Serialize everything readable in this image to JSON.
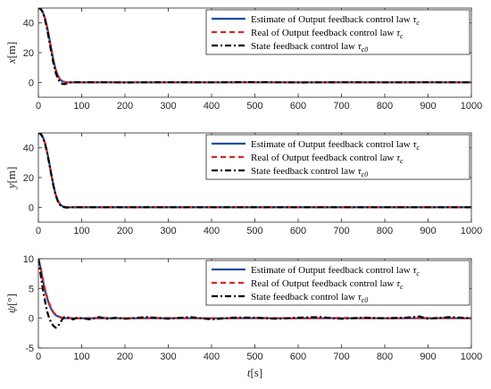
{
  "chart_data": [
    {
      "type": "line",
      "ylabel": {
        "var": "x",
        "unit": "[m]"
      },
      "xlim": [
        0,
        1000
      ],
      "ylim": [
        -10,
        50
      ],
      "xticks": [
        0,
        100,
        200,
        300,
        400,
        500,
        600,
        700,
        800,
        900,
        1000
      ],
      "yticks": [
        0,
        20,
        40
      ],
      "grid": false,
      "legend_position": "top-right",
      "series": [
        {
          "name": "Estimate of Output feedback control law",
          "sub": "c",
          "color": "#1f4e9c",
          "style": "solid",
          "x": [
            0,
            5,
            10,
            15,
            20,
            25,
            30,
            35,
            40,
            45,
            50,
            55,
            60,
            65,
            70,
            80,
            90,
            100,
            150,
            200,
            300,
            400,
            500,
            600,
            700,
            800,
            900,
            1000
          ],
          "y": [
            50,
            49.6,
            47.5,
            43.5,
            37.5,
            30,
            22,
            14.5,
            8.5,
            4.5,
            2,
            0.8,
            0.3,
            0.1,
            0,
            0,
            0,
            0,
            0,
            0,
            0,
            0,
            0,
            0,
            0,
            0,
            0,
            0
          ]
        },
        {
          "name": "Real of Output feedback control law",
          "sub": "c",
          "color": "#d62728",
          "style": "dashed",
          "x": [
            0,
            5,
            10,
            15,
            20,
            25,
            30,
            35,
            40,
            45,
            50,
            55,
            60,
            65,
            70,
            80,
            90,
            100,
            150,
            200,
            300,
            400,
            500,
            600,
            700,
            800,
            900,
            1000
          ],
          "y": [
            50,
            49.6,
            47.5,
            43.5,
            37.5,
            30,
            22,
            14.5,
            8.5,
            4.5,
            2,
            0.8,
            0.3,
            0.1,
            0,
            0,
            0,
            0,
            0,
            0,
            0,
            0,
            0,
            0,
            0,
            0,
            0,
            0
          ]
        },
        {
          "name": "State feedback control law",
          "sub": "c0",
          "color": "#000000",
          "style": "dashdot",
          "x": [
            0,
            5,
            10,
            15,
            20,
            25,
            30,
            35,
            40,
            45,
            50,
            55,
            60,
            65,
            70,
            75,
            80,
            90,
            100,
            150,
            200,
            300,
            400,
            500,
            600,
            700,
            800,
            900,
            1000
          ],
          "y": [
            50,
            49.5,
            47,
            42.5,
            36,
            28,
            20,
            12.5,
            6.5,
            2.5,
            0.2,
            -1,
            -1.2,
            -0.8,
            -0.3,
            0,
            0.2,
            0.1,
            0,
            0.1,
            -0.1,
            0.1,
            0,
            0.2,
            -0.1,
            0.1,
            0,
            0.1,
            0
          ]
        }
      ]
    },
    {
      "type": "line",
      "ylabel": {
        "var": "y",
        "unit": "[m]"
      },
      "xlim": [
        0,
        1000
      ],
      "ylim": [
        -10,
        50
      ],
      "xticks": [
        0,
        100,
        200,
        300,
        400,
        500,
        600,
        700,
        800,
        900,
        1000
      ],
      "yticks": [
        0,
        20,
        40
      ],
      "grid": false,
      "legend_position": "top-right",
      "series": [
        {
          "name": "Estimate of Output feedback control law",
          "sub": "c",
          "color": "#1f4e9c",
          "style": "solid",
          "x": [
            0,
            5,
            10,
            15,
            20,
            25,
            30,
            35,
            40,
            45,
            50,
            55,
            60,
            65,
            70,
            80,
            90,
            100,
            150,
            200,
            300,
            400,
            500,
            600,
            700,
            800,
            900,
            1000
          ],
          "y": [
            50,
            49.6,
            47.5,
            43.5,
            37.5,
            30,
            22,
            14.5,
            8.5,
            4.5,
            2,
            0.8,
            0.3,
            0.1,
            0,
            0,
            0,
            0,
            0,
            0,
            0,
            0,
            0,
            0,
            0,
            0,
            0,
            0
          ]
        },
        {
          "name": "Real of Output feedback control law",
          "sub": "c",
          "color": "#d62728",
          "style": "dashed",
          "x": [
            0,
            5,
            10,
            15,
            20,
            25,
            30,
            35,
            40,
            45,
            50,
            55,
            60,
            65,
            70,
            80,
            90,
            100,
            150,
            200,
            300,
            400,
            500,
            600,
            700,
            800,
            900,
            1000
          ],
          "y": [
            50,
            49.6,
            47.5,
            43.5,
            37.5,
            30,
            22,
            14.5,
            8.5,
            4.5,
            2,
            0.8,
            0.3,
            0.1,
            0,
            0,
            0,
            0,
            0,
            0,
            0,
            0,
            0,
            0,
            0,
            0,
            0,
            0
          ]
        },
        {
          "name": "State feedback control law",
          "sub": "c0",
          "color": "#000000",
          "style": "dashdot",
          "x": [
            0,
            5,
            10,
            15,
            20,
            25,
            30,
            35,
            40,
            45,
            50,
            55,
            60,
            65,
            70,
            80,
            90,
            100,
            150,
            200,
            300,
            400,
            500,
            600,
            700,
            800,
            900,
            1000
          ],
          "y": [
            50,
            49.5,
            47,
            43,
            37,
            29.5,
            21.5,
            14,
            8,
            4,
            1.5,
            0.4,
            0,
            -0.2,
            -0.1,
            0,
            0,
            0,
            0,
            0,
            0,
            0,
            0,
            0,
            0,
            0,
            0,
            0
          ]
        }
      ]
    },
    {
      "type": "line",
      "ylabel": {
        "var": "ψ",
        "unit": "[°]"
      },
      "xlabel": {
        "var": "t",
        "unit": "[s]"
      },
      "xlim": [
        0,
        1000
      ],
      "ylim": [
        -5,
        10
      ],
      "xticks": [
        0,
        100,
        200,
        300,
        400,
        500,
        600,
        700,
        800,
        900,
        1000
      ],
      "yticks": [
        -5,
        0,
        5,
        10
      ],
      "grid": false,
      "legend_position": "top-right",
      "series": [
        {
          "name": "Estimate of Output feedback control law",
          "sub": "c",
          "color": "#1f4e9c",
          "style": "solid",
          "x": [
            0,
            5,
            10,
            15,
            20,
            25,
            30,
            35,
            40,
            50,
            60,
            70,
            80,
            100,
            150,
            200,
            300,
            400,
            500,
            600,
            700,
            800,
            900,
            1000
          ],
          "y": [
            10,
            8.5,
            6.5,
            4.8,
            3.4,
            2.3,
            1.5,
            0.9,
            0.5,
            0.15,
            0,
            0,
            0,
            0,
            0,
            0,
            0,
            0,
            0,
            0,
            0,
            0,
            0,
            0
          ]
        },
        {
          "name": "Real of Output feedback control law",
          "sub": "c",
          "color": "#d62728",
          "style": "dashed",
          "x": [
            0,
            5,
            10,
            15,
            20,
            25,
            30,
            35,
            40,
            50,
            60,
            70,
            80,
            100,
            150,
            200,
            300,
            400,
            500,
            600,
            700,
            800,
            900,
            1000
          ],
          "y": [
            10,
            8.6,
            6.7,
            5,
            3.6,
            2.5,
            1.6,
            1,
            0.6,
            0.2,
            0,
            0.05,
            0,
            0,
            0.05,
            0,
            0.05,
            0,
            0.05,
            0,
            0.05,
            0,
            0.05,
            0
          ]
        },
        {
          "name": "State feedback control law",
          "sub": "c0",
          "color": "#000000",
          "style": "dashdot",
          "x": [
            0,
            5,
            10,
            15,
            20,
            25,
            30,
            35,
            40,
            45,
            50,
            55,
            60,
            70,
            80,
            90,
            100,
            120,
            140,
            160,
            180,
            200,
            250,
            300,
            350,
            400,
            450,
            500,
            550,
            600,
            650,
            700,
            750,
            800,
            850,
            880,
            900,
            950,
            1000
          ],
          "y": [
            10,
            7.5,
            5,
            3,
            1.2,
            0,
            -0.8,
            -1.3,
            -1.6,
            -1.4,
            -0.8,
            -0.2,
            0.2,
            0.1,
            -0.2,
            0.1,
            0,
            -0.2,
            0.2,
            -0.1,
            0.1,
            -0.1,
            0.2,
            -0.1,
            0.2,
            -0.2,
            0.1,
            0.1,
            -0.1,
            0.1,
            0.2,
            -0.1,
            0.1,
            0,
            0.1,
            0.3,
            -0.1,
            0.2,
            0
          ]
        }
      ]
    }
  ]
}
